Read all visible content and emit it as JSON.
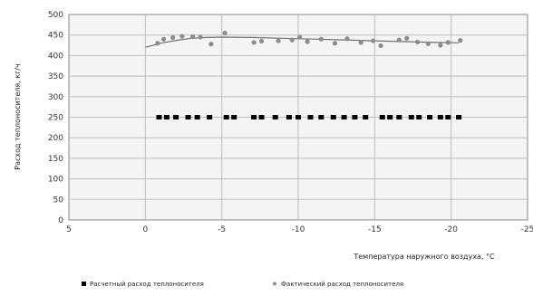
{
  "chart_data": {
    "type": "scatter",
    "xlabel": "Температура наружного воздуха, °C",
    "ylabel": "Расход теплоносителя, кг/ч",
    "xlim": [
      5,
      -25
    ],
    "ylim": [
      0,
      500
    ],
    "x_ticks": [
      5,
      0,
      -5,
      -10,
      -15,
      -20,
      -25
    ],
    "y_ticks": [
      0,
      50,
      100,
      150,
      200,
      250,
      300,
      350,
      400,
      450,
      500
    ],
    "grid": true,
    "legend_position": "bottom",
    "series": [
      {
        "name": "Расчетный расход теплоносителя",
        "marker": "square",
        "color": "#000000",
        "x": [
          -0.9,
          -1.4,
          -2.0,
          -2.8,
          -3.4,
          -4.2,
          -5.3,
          -5.8,
          -7.1,
          -7.6,
          -8.5,
          -9.4,
          -10.0,
          -10.8,
          -11.5,
          -12.3,
          -13.0,
          -13.7,
          -14.4,
          -15.5,
          -16.0,
          -16.6,
          -17.4,
          -17.9,
          -18.6,
          -19.3,
          -19.8,
          -20.5
        ],
        "y": [
          250,
          250,
          250,
          250,
          250,
          250,
          250,
          250,
          250,
          250,
          250,
          250,
          250,
          250,
          250,
          250,
          250,
          250,
          250,
          250,
          250,
          250,
          250,
          250,
          250,
          250,
          250,
          250
        ]
      },
      {
        "name": "Фактический расход теплоносителя",
        "marker": "circle",
        "color": "#8c8c8c",
        "x": [
          -0.8,
          -1.2,
          -1.8,
          -2.4,
          -3.1,
          -3.6,
          -4.3,
          -5.2,
          -7.1,
          -7.6,
          -8.7,
          -9.6,
          -10.1,
          -10.6,
          -11.5,
          -12.4,
          -13.2,
          -14.1,
          -14.9,
          -15.4,
          -16.6,
          -17.1,
          -17.8,
          -18.5,
          -19.3,
          -19.8,
          -20.6
        ],
        "y": [
          430,
          440,
          444,
          447,
          446,
          445,
          428,
          455,
          432,
          435,
          436,
          438,
          445,
          434,
          440,
          430,
          441,
          432,
          436,
          424,
          438,
          442,
          433,
          429,
          425,
          432,
          437
        ]
      }
    ],
    "trendline": {
      "series": "Фактический расход теплоносителя",
      "x": [
        0,
        -1,
        -2,
        -3,
        -4,
        -5,
        -7,
        -9,
        -11,
        -13,
        -15,
        -17,
        -19,
        -20.5
      ],
      "y": [
        420,
        430,
        437,
        442,
        444,
        445,
        444,
        442,
        440,
        438,
        436,
        434,
        432,
        431
      ]
    }
  }
}
